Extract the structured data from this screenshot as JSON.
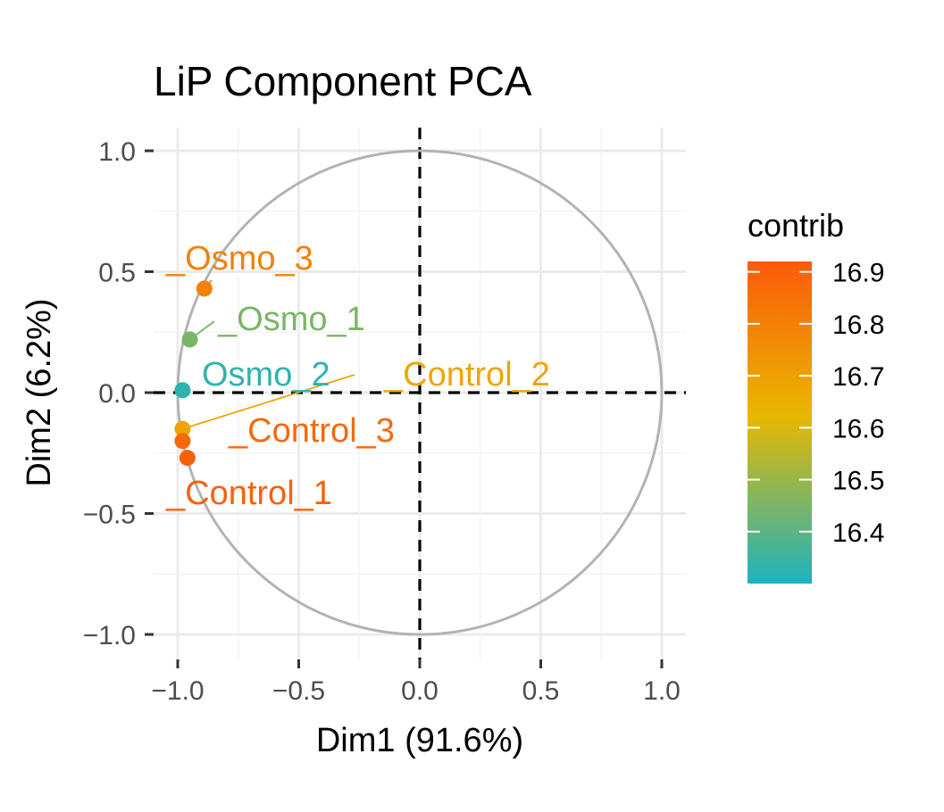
{
  "chart_data": {
    "type": "scatter",
    "title": "LiP Component PCA",
    "xlabel": "Dim1 (91.6%)",
    "ylabel": "Dim2 (6.2%)",
    "xlim": [
      -1.0,
      1.0
    ],
    "ylim": [
      -1.0,
      1.0
    ],
    "x_ticks": [
      "−1.0",
      "−0.5",
      "0.0",
      "0.5",
      "1.0"
    ],
    "y_ticks": [
      "1.0",
      "0.5",
      "0.0",
      "−0.5",
      "−1.0"
    ],
    "grid": true,
    "unit_circle": true,
    "reference_lines": [
      {
        "axis": "x",
        "value": 0,
        "style": "dashed"
      },
      {
        "axis": "y",
        "value": 0,
        "style": "dashed"
      }
    ],
    "points": [
      {
        "label": "_Osmo_3",
        "x": -0.89,
        "y": 0.43,
        "contrib": 16.8
      },
      {
        "label": "_Osmo_1",
        "x": -0.95,
        "y": 0.22,
        "contrib": 16.45
      },
      {
        "label": "Osmo_2",
        "x": -0.98,
        "y": 0.01,
        "contrib": 16.33
      },
      {
        "label": "_Control_2",
        "x": -0.98,
        "y": -0.15,
        "contrib": 16.68
      },
      {
        "label": "_Control_3",
        "x": -0.98,
        "y": -0.2,
        "contrib": 16.88
      },
      {
        "label": "_Control_1",
        "x": -0.96,
        "y": -0.27,
        "contrib": 16.9
      }
    ],
    "legend": {
      "title": "contrib",
      "position": "right",
      "range": [
        16.3,
        16.92
      ],
      "ticks": [
        {
          "label": "16.9",
          "value": 16.9
        },
        {
          "label": "16.8",
          "value": 16.8
        },
        {
          "label": "16.7",
          "value": 16.7
        },
        {
          "label": "16.6",
          "value": 16.6
        },
        {
          "label": "16.5",
          "value": 16.5
        },
        {
          "label": "16.4",
          "value": 16.4
        }
      ],
      "colors": [
        "#1bb3c0",
        "#e8b800",
        "#fc5a0a"
      ]
    }
  }
}
